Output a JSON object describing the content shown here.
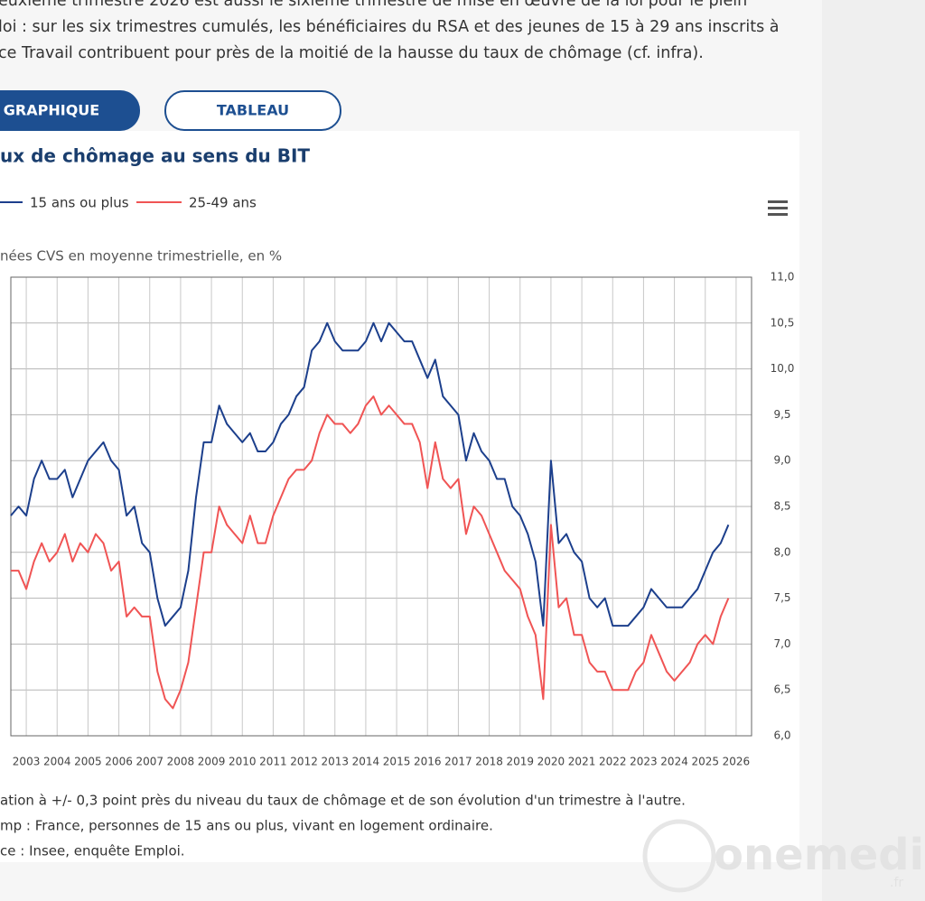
{
  "page": {
    "intro": [
      "euxième trimestre 2026 est aussi le sixième trimestre de mise en œuvre de la loi pour le plein",
      "loi : sur les six trimestres cumulés, les bénéficiaires du RSA et des jeunes de 15 à 29 ans inscrits à",
      "ce Travail contribuent pour près de la moitié de la hausse du taux de chômage (cf. infra)."
    ],
    "buttons": [
      "GRAPHIQUE",
      "TABLEAU"
    ],
    "notes": [
      "ation à +/- 0,3 point près du niveau du taux de chômage et de son évolution d'un trimestre à l'autre.",
      "mp : France, personnes de 15 ans ou plus, vivant en logement ordinaire.",
      "ce : Insee, enquête Emploi."
    ],
    "watermark": "onemedia",
    "watermark_suffix": ".fr"
  },
  "chart_data": {
    "type": "line",
    "title": "ux de chômage au sens du BIT",
    "subtitle": "nées CVS en moyenne trimestrielle, en %",
    "x": [
      2003,
      2003.25,
      2003.5,
      2003.75,
      2004,
      2004.25,
      2004.5,
      2004.75,
      2005,
      2005.25,
      2005.5,
      2005.75,
      2006,
      2006.25,
      2006.5,
      2006.75,
      2007,
      2007.25,
      2007.5,
      2007.75,
      2008,
      2008.25,
      2008.5,
      2008.75,
      2009,
      2009.25,
      2009.5,
      2009.75,
      2010,
      2010.25,
      2010.5,
      2010.75,
      2011,
      2011.25,
      2011.5,
      2011.75,
      2012,
      2012.25,
      2012.5,
      2012.75,
      2013,
      2013.25,
      2013.5,
      2013.75,
      2014,
      2014.25,
      2014.5,
      2014.75,
      2015,
      2015.25,
      2015.5,
      2015.75,
      2016,
      2016.25,
      2016.5,
      2016.75,
      2017,
      2017.25,
      2017.5,
      2017.75,
      2018,
      2018.25,
      2018.5,
      2018.75,
      2019,
      2019.25,
      2019.5,
      2019.75,
      2020,
      2020.25,
      2020.5,
      2020.75,
      2021,
      2021.25,
      2021.5,
      2021.75,
      2022,
      2022.25,
      2022.5,
      2022.75,
      2023,
      2023.25,
      2023.5,
      2023.75,
      2024,
      2024.25,
      2024.5,
      2024.75,
      2025,
      2025.25,
      2025.5,
      2025.75,
      2026,
      2026.25
    ],
    "series": [
      {
        "name": "15 ans ou plus",
        "color": "#1c3f8c",
        "values": [
          8.4,
          8.5,
          8.4,
          8.8,
          9.0,
          8.8,
          8.8,
          8.9,
          8.6,
          8.8,
          9.0,
          9.1,
          9.2,
          9.0,
          8.9,
          8.4,
          8.5,
          8.1,
          8.0,
          7.5,
          7.2,
          7.3,
          7.4,
          7.8,
          8.6,
          9.2,
          9.2,
          9.6,
          9.4,
          9.3,
          9.2,
          9.3,
          9.1,
          9.1,
          9.2,
          9.4,
          9.5,
          9.7,
          9.8,
          10.2,
          10.3,
          10.5,
          10.3,
          10.2,
          10.2,
          10.2,
          10.3,
          10.5,
          10.3,
          10.5,
          10.4,
          10.3,
          10.3,
          10.1,
          9.9,
          10.1,
          9.7,
          9.6,
          9.5,
          9.0,
          9.3,
          9.1,
          9.0,
          8.8,
          8.8,
          8.5,
          8.4,
          8.2,
          7.9,
          7.2,
          9.0,
          8.1,
          8.2,
          8.0,
          7.9,
          7.5,
          7.4,
          7.5,
          7.2,
          7.2,
          7.2,
          7.3,
          7.4,
          7.6,
          7.5,
          7.4,
          7.4,
          7.4,
          7.5,
          7.6,
          7.8,
          8.0,
          8.1,
          8.3
        ]
      },
      {
        "name": "25-49 ans",
        "color": "#f05454",
        "values": [
          7.8,
          7.8,
          7.6,
          7.9,
          8.1,
          7.9,
          8.0,
          8.2,
          7.9,
          8.1,
          8.0,
          8.2,
          8.1,
          7.8,
          7.9,
          7.3,
          7.4,
          7.3,
          7.3,
          6.7,
          6.4,
          6.3,
          6.5,
          6.8,
          7.4,
          8.0,
          8.0,
          8.5,
          8.3,
          8.2,
          8.1,
          8.4,
          8.1,
          8.1,
          8.4,
          8.6,
          8.8,
          8.9,
          8.9,
          9.0,
          9.3,
          9.5,
          9.4,
          9.4,
          9.3,
          9.4,
          9.6,
          9.7,
          9.5,
          9.6,
          9.5,
          9.4,
          9.4,
          9.2,
          8.7,
          9.2,
          8.8,
          8.7,
          8.8,
          8.2,
          8.5,
          8.4,
          8.2,
          8.0,
          7.8,
          7.7,
          7.6,
          7.3,
          7.1,
          6.4,
          8.3,
          7.4,
          7.5,
          7.1,
          7.1,
          6.8,
          6.7,
          6.7,
          6.5,
          6.5,
          6.5,
          6.7,
          6.8,
          7.1,
          6.9,
          6.7,
          6.6,
          6.7,
          6.8,
          7.0,
          7.1,
          7.0,
          7.3,
          7.5
        ]
      }
    ],
    "xlim": [
      2003,
      2027
    ],
    "xticks": [
      {
        "value": 2003.5,
        "label": "2003"
      },
      {
        "value": 2004.5,
        "label": "2004"
      },
      {
        "value": 2005.5,
        "label": "2005"
      },
      {
        "value": 2006.5,
        "label": "2006"
      },
      {
        "value": 2007.5,
        "label": "2007"
      },
      {
        "value": 2008.5,
        "label": "2008"
      },
      {
        "value": 2009.5,
        "label": "2009"
      },
      {
        "value": 2010.5,
        "label": "2010"
      },
      {
        "value": 2011.5,
        "label": "2011"
      },
      {
        "value": 2012.5,
        "label": "2012"
      },
      {
        "value": 2013.5,
        "label": "2013"
      },
      {
        "value": 2014.5,
        "label": "2014"
      },
      {
        "value": 2015.5,
        "label": "2015"
      },
      {
        "value": 2016.5,
        "label": "2016"
      },
      {
        "value": 2017.5,
        "label": "2017"
      },
      {
        "value": 2018.5,
        "label": "2018"
      },
      {
        "value": 2019.5,
        "label": "2019"
      },
      {
        "value": 2020.5,
        "label": "2020"
      },
      {
        "value": 2021.5,
        "label": "2021"
      },
      {
        "value": 2022.5,
        "label": "2022"
      },
      {
        "value": 2023.5,
        "label": "2023"
      },
      {
        "value": 2024.5,
        "label": "2024"
      },
      {
        "value": 2025.5,
        "label": "2025"
      },
      {
        "value": 2026.5,
        "label": "2026"
      }
    ],
    "ylim": [
      6,
      11
    ],
    "yticks": [
      {
        "value": 6,
        "label": "6,0"
      },
      {
        "value": 6.5,
        "label": "6,5"
      },
      {
        "value": 7,
        "label": "7,0"
      },
      {
        "value": 7.5,
        "label": "7,5"
      },
      {
        "value": 8,
        "label": "8,0"
      },
      {
        "value": 8.5,
        "label": "8,5"
      },
      {
        "value": 9,
        "label": "9,0"
      },
      {
        "value": 9.5,
        "label": "9,5"
      },
      {
        "value": 10,
        "label": "10,0"
      },
      {
        "value": 10.5,
        "label": "10,5"
      },
      {
        "value": 11,
        "label": "11,0"
      }
    ],
    "grid": true
  }
}
